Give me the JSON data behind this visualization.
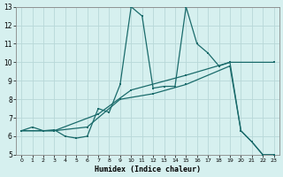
{
  "xlabel": "Humidex (Indice chaleur)",
  "bg_color": "#d6f0ef",
  "line_color": "#1a6b6b",
  "grid_color": "#b8d8d8",
  "xlim": [
    -0.5,
    23.5
  ],
  "ylim": [
    5,
    13
  ],
  "xticks": [
    0,
    1,
    2,
    3,
    4,
    5,
    6,
    7,
    8,
    9,
    10,
    11,
    12,
    13,
    14,
    15,
    16,
    17,
    18,
    19,
    20,
    21,
    22,
    23
  ],
  "yticks": [
    5,
    6,
    7,
    8,
    9,
    10,
    11,
    12,
    13
  ],
  "line1_x": [
    0,
    1,
    2,
    3,
    4,
    5,
    6,
    7,
    8,
    9,
    10,
    11,
    12,
    13,
    14,
    15,
    16,
    17,
    18,
    19,
    20,
    21,
    22,
    23
  ],
  "line1_y": [
    6.3,
    6.5,
    6.3,
    6.35,
    6.0,
    5.9,
    6.0,
    7.5,
    7.3,
    8.8,
    13.0,
    12.5,
    8.6,
    8.7,
    8.7,
    13.0,
    11.0,
    10.5,
    9.8,
    10.0,
    6.3,
    5.7,
    5.0,
    5.0
  ],
  "line3_x": [
    0,
    3,
    6,
    9,
    12,
    15,
    19,
    20,
    21,
    22,
    23
  ],
  "line3_y": [
    6.3,
    6.3,
    6.5,
    8.0,
    8.3,
    8.8,
    9.8,
    6.3,
    5.7,
    5.0,
    5.0
  ],
  "line4_x": [
    0,
    3,
    7,
    10,
    15,
    19,
    23
  ],
  "line4_y": [
    6.3,
    6.3,
    7.2,
    8.5,
    9.3,
    10.0,
    10.0
  ]
}
